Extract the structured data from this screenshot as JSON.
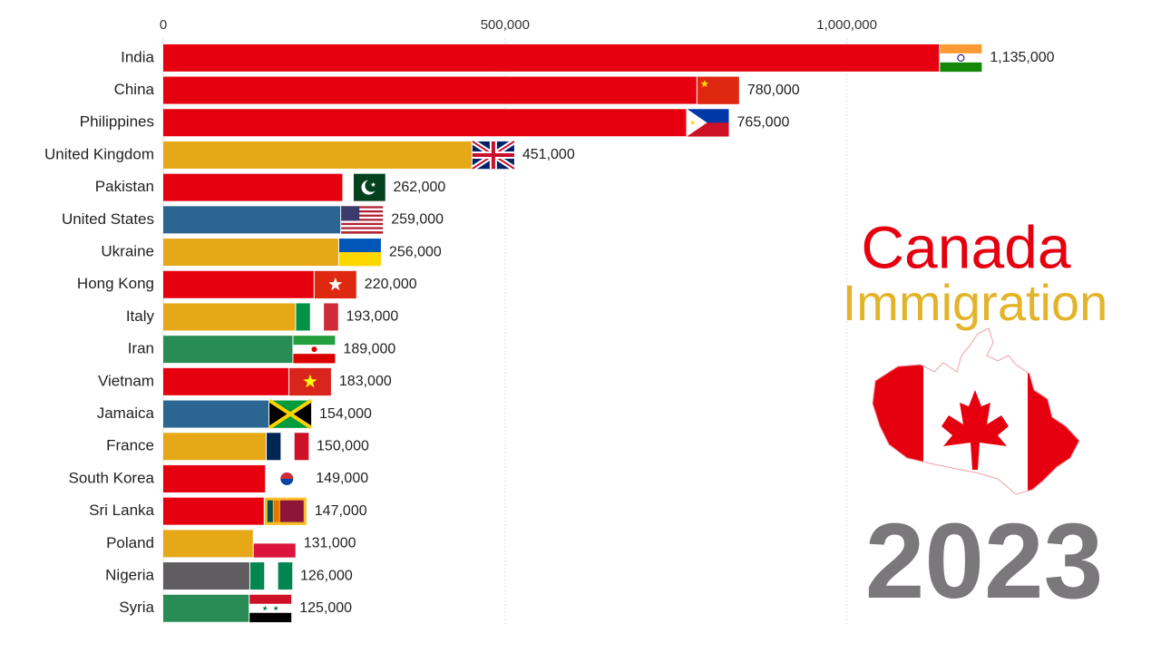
{
  "chart_data": {
    "type": "bar",
    "orientation": "horizontal",
    "title": "Canada",
    "subtitle": "Immigration",
    "year": "2023",
    "categories": [
      "India",
      "China",
      "Philippines",
      "United Kingdom",
      "Pakistan",
      "United States",
      "Ukraine",
      "Hong Kong",
      "Italy",
      "Iran",
      "Vietnam",
      "Jamaica",
      "France",
      "South Korea",
      "Sri Lanka",
      "Poland",
      "Nigeria",
      "Syria"
    ],
    "values": [
      1135000,
      780000,
      765000,
      451000,
      262000,
      259000,
      256000,
      220000,
      193000,
      189000,
      183000,
      154000,
      150000,
      149000,
      147000,
      131000,
      126000,
      125000
    ],
    "value_labels": [
      "1,135,000",
      "780,000",
      "765,000",
      "451,000",
      "262,000",
      "259,000",
      "256,000",
      "220,000",
      "193,000",
      "189,000",
      "183,000",
      "154,000",
      "150,000",
      "149,000",
      "147,000",
      "131,000",
      "126,000",
      "125,000"
    ],
    "colors": [
      "#e6000f",
      "#e6000f",
      "#e6000f",
      "#e6a817",
      "#e6000f",
      "#2b6592",
      "#e6a817",
      "#e6000f",
      "#e6a817",
      "#2a8c55",
      "#e6000f",
      "#2b6592",
      "#e6a817",
      "#e6000f",
      "#e6000f",
      "#e6a817",
      "#5f5d60",
      "#2a8c55"
    ],
    "xlim": [
      0,
      1100000
    ],
    "xticks": [
      0,
      {
        "value": 500000,
        "label": "500,000"
      },
      {
        "value": 1000000,
        "label": "1,000,000"
      }
    ],
    "grid": true
  }
}
